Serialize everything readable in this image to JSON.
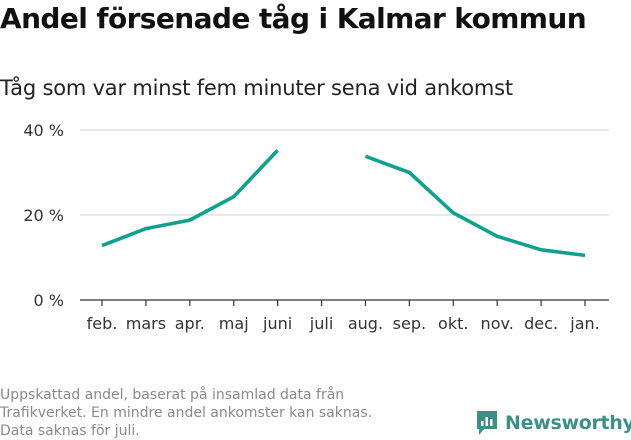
{
  "title": "Andel försenade tåg i Kalmar kommun",
  "subtitle": "Tåg som var minst fem minuter sena vid ankomst",
  "footnote": [
    "Uppskattad andel, baserat på insamlad data från",
    "Trafikverket. En mindre andel ankomster kan saknas.",
    "Data saknas för juli."
  ],
  "brand": "Newsworthy",
  "colors": {
    "line": "#12a08e",
    "grid": "#dcdcdc",
    "axis": "#333333",
    "brand": "#3e8f88"
  },
  "chart_data": {
    "type": "line",
    "title": "Andel försenade tåg i Kalmar kommun",
    "subtitle": "Tåg som var minst fem minuter sena vid ankomst",
    "xlabel": "",
    "ylabel": "",
    "categories": [
      "feb.",
      "mars",
      "apr.",
      "maj",
      "juni",
      "juli",
      "aug.",
      "sep.",
      "okt.",
      "nov.",
      "dec.",
      "jan."
    ],
    "series": [
      {
        "values": [
          12.8,
          16.8,
          18.8,
          24.3,
          35.2,
          null,
          33.8,
          30.0,
          20.5,
          15.0,
          11.8,
          10.5
        ]
      }
    ],
    "ylim": [
      0,
      40
    ],
    "yticks": [
      0,
      20,
      40
    ],
    "ytick_labels": [
      "0 %",
      "20 %",
      "40 %"
    ],
    "grid": true,
    "legend": "none"
  }
}
